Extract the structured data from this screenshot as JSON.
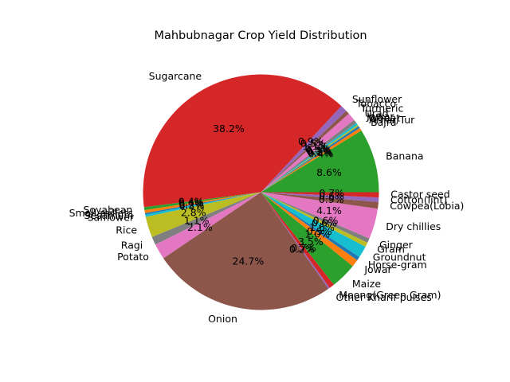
{
  "chart_data": {
    "type": "pie",
    "title": "Mahbubnagar Crop Yield Distribution",
    "slices": [
      {
        "label": "Banana",
        "value": 8.6,
        "pct_label": "8.6%",
        "color": "#2ca02c"
      },
      {
        "label": "Bajra",
        "value": 0.4,
        "pct_label": "0.4%",
        "color": "#ff7f0e"
      },
      {
        "label": "Arhar/Tur",
        "value": 0.3,
        "pct_label": "0.3%",
        "color": "#1f77b4"
      },
      {
        "label": "Wheat",
        "value": 0.2,
        "pct_label": "0.2%",
        "color": "#bcbd22"
      },
      {
        "label": "Jowar",
        "value": 0.3,
        "pct_label": "0.3%",
        "color": "#17becf"
      },
      {
        "label": "Urad",
        "value": 0.5,
        "pct_label": "0.5%",
        "color": "#7f7f7f"
      },
      {
        "label": "Turmeric",
        "value": 1.1,
        "pct_label": "1.1%",
        "color": "#e377c2"
      },
      {
        "label": "Tobacco",
        "value": 0.5,
        "pct_label": "0.5%",
        "color": "#8c564b"
      },
      {
        "label": "Sunflower",
        "value": 0.9,
        "pct_label": "0.9%",
        "color": "#9467bd"
      },
      {
        "label": "Sugarcane",
        "value": 38.2,
        "pct_label": "38.2%",
        "color": "#d62728"
      },
      {
        "label": "Soyabean",
        "value": 0.4,
        "pct_label": "0.4%",
        "color": "#2ca02c"
      },
      {
        "label": "Small millets",
        "value": 0.4,
        "pct_label": "0.4%",
        "color": "#ff7f0e"
      },
      {
        "label": "Sesamum",
        "value": 0.2,
        "pct_label": "0.2%",
        "color": "#1f77b4"
      },
      {
        "label": "Safflower",
        "value": 0.3,
        "pct_label": "0.3%",
        "color": "#17becf"
      },
      {
        "label": "Rice",
        "value": 2.8,
        "pct_label": "2.8%",
        "color": "#bcbd22"
      },
      {
        "label": "Ragi",
        "value": 1.1,
        "pct_label": "1.1%",
        "color": "#7f7f7f"
      },
      {
        "label": "Potato",
        "value": 2.1,
        "pct_label": "2.1%",
        "color": "#e377c2"
      },
      {
        "label": "Onion",
        "value": 24.7,
        "pct_label": "24.7%",
        "color": "#8c564b"
      },
      {
        "label": "Other Kharif pulses",
        "value": 0.2,
        "pct_label": "0.2%",
        "color": "#9467bd"
      },
      {
        "label": "Moong(Green Gram)",
        "value": 0.7,
        "pct_label": "0.7%",
        "color": "#d62728"
      },
      {
        "label": "Maize",
        "value": 3.5,
        "pct_label": "3.5%",
        "color": "#2ca02c"
      },
      {
        "label": "Jowar",
        "value": 1.0,
        "pct_label": "1.0%",
        "color": "#ff7f0e"
      },
      {
        "label": "Horse-gram",
        "value": 0.5,
        "pct_label": "0.5%",
        "color": "#1f77b4"
      },
      {
        "label": "Groundnut",
        "value": 1.6,
        "pct_label": "1.6%",
        "color": "#17becf"
      },
      {
        "label": "Gram",
        "value": 0.6,
        "pct_label": "0.6%",
        "color": "#bcbd22"
      },
      {
        "label": "Ginger",
        "value": 0.6,
        "pct_label": "0.6%",
        "color": "#7f7f7f"
      },
      {
        "label": "Dry chillies",
        "value": 4.1,
        "pct_label": "4.1%",
        "color": "#e377c2"
      },
      {
        "label": "Cowpea(Lobia)",
        "value": 0.9,
        "pct_label": "0.9%",
        "color": "#8c564b"
      },
      {
        "label": "Cotton(lint)",
        "value": 0.6,
        "pct_label": "0.6%",
        "color": "#9467bd"
      },
      {
        "label": "Castor seed",
        "value": 0.7,
        "pct_label": "0.7%",
        "color": "#d62728"
      }
    ]
  }
}
